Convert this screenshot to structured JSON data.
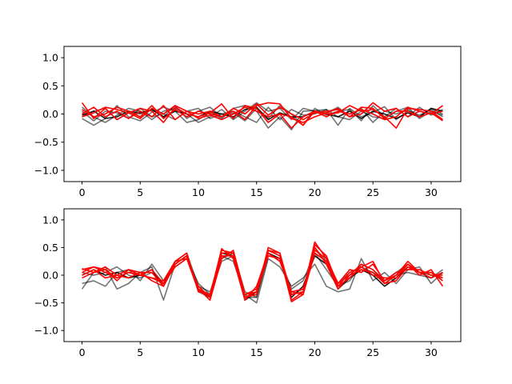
{
  "colors": {
    "background": "#ffffff",
    "frame": "#000000",
    "gray_series": "#333333",
    "red_series": "#ff0000"
  },
  "chart_data": [
    {
      "type": "line",
      "xlim": [
        -1.55,
        32.55
      ],
      "ylim": [
        -1.2,
        1.2
      ],
      "xticks": [
        0,
        5,
        10,
        15,
        20,
        25,
        30
      ],
      "yticks": [
        -1.0,
        -0.5,
        0.0,
        0.5,
        1.0
      ],
      "xtick_labels": [
        "0",
        "5",
        "10",
        "15",
        "20",
        "25",
        "30"
      ],
      "ytick_labels": [
        "−1.0",
        "−0.5",
        "0.0",
        "0.5",
        "1.0"
      ],
      "x": [
        0,
        1,
        2,
        3,
        4,
        5,
        6,
        7,
        8,
        9,
        10,
        11,
        12,
        13,
        14,
        15,
        16,
        17,
        18,
        19,
        20,
        21,
        22,
        23,
        24,
        25,
        26,
        27,
        28,
        29,
        30,
        31
      ],
      "series": [
        {
          "color": "#000000",
          "opacity": 0.55,
          "values": [
            -0.08,
            -0.2,
            -0.08,
            0.15,
            -0.05,
            -0.12,
            0.03,
            0.12,
            0.05,
            -0.15,
            -0.1,
            0.03,
            -0.08,
            0.1,
            0.15,
            0.05,
            -0.25,
            -0.05,
            -0.28,
            0.05,
            0.06,
            0.08,
            -0.2,
            0.1,
            -0.05,
            0.03,
            0.13,
            -0.1,
            0.05,
            -0.02,
            0.08,
            -0.05
          ]
        },
        {
          "color": "#000000",
          "opacity": 0.55,
          "values": [
            0.12,
            -0.05,
            -0.15,
            -0.02,
            0.1,
            0.05,
            -0.1,
            0.05,
            0.1,
            0.0,
            -0.15,
            -0.05,
            0.08,
            -0.1,
            0.05,
            0.2,
            0.05,
            0.1,
            -0.1,
            0.1,
            0.05,
            0.02,
            0.12,
            -0.05,
            0.1,
            -0.15,
            0.05,
            0.0,
            0.08,
            -0.05,
            0.1,
            0.0
          ]
        },
        {
          "color": "#000000",
          "opacity": 0.55,
          "values": [
            -0.05,
            0.05,
            0.1,
            -0.1,
            0.02,
            0.0,
            0.08,
            -0.05,
            0.15,
            -0.08,
            0.05,
            0.12,
            -0.05,
            0.02,
            -0.12,
            0.1,
            -0.08,
            0.15,
            0.0,
            -0.2,
            0.1,
            -0.02,
            0.05,
            0.08,
            -0.12,
            0.15,
            -0.05,
            0.1,
            -0.05,
            0.12,
            -0.02,
            0.08
          ]
        },
        {
          "color": "#000000",
          "opacity": 0.55,
          "values": [
            0.05,
            -0.12,
            0.05,
            0.02,
            -0.08,
            0.1,
            -0.05,
            0.0,
            -0.1,
            0.05,
            0.1,
            -0.08,
            0.0,
            0.05,
            -0.05,
            -0.15,
            0.12,
            -0.1,
            0.08,
            -0.02,
            0.0,
            0.08,
            -0.05,
            -0.1,
            0.05,
            -0.05,
            -0.08,
            0.05,
            0.12,
            -0.08,
            0.05,
            -0.02
          ]
        },
        {
          "color": "#000000",
          "opacity": 0.9,
          "values": [
            -0.02,
            0.05,
            -0.08,
            -0.05,
            0.05,
            0.02,
            0.08,
            -0.05,
            0.05,
            0.0,
            -0.05,
            0.05,
            0.0,
            -0.05,
            0.08,
            0.12,
            -0.1,
            0.02,
            -0.05,
            -0.05,
            0.05,
            0.0,
            -0.05,
            0.05,
            -0.08,
            0.05,
            0.0,
            -0.08,
            0.02,
            -0.05,
            0.1,
            0.05
          ]
        },
        {
          "color": "#ff0000",
          "opacity": 1,
          "values": [
            0.2,
            -0.08,
            0.1,
            -0.1,
            0.02,
            0.1,
            0.05,
            -0.15,
            0.12,
            0.0,
            -0.05,
            0.02,
            0.18,
            -0.08,
            0.15,
            0.1,
            -0.15,
            0.0,
            -0.05,
            -0.2,
            0.05,
            -0.05,
            0.05,
            0.0,
            0.08,
            0.0,
            -0.1,
            -0.05,
            0.12,
            0.05,
            0.0,
            0.15
          ]
        },
        {
          "color": "#ff0000",
          "opacity": 1,
          "values": [
            0.0,
            0.12,
            -0.05,
            0.05,
            -0.08,
            0.05,
            -0.05,
            0.15,
            -0.1,
            0.05,
            0.0,
            0.05,
            -0.05,
            0.05,
            -0.1,
            0.15,
            0.2,
            0.18,
            -0.08,
            -0.15,
            -0.05,
            0.02,
            0.1,
            -0.05,
            0.12,
            0.1,
            -0.08,
            0.05,
            0.05,
            -0.05,
            0.02,
            -0.12
          ]
        },
        {
          "color": "#ff0000",
          "opacity": 1,
          "values": [
            -0.05,
            0.02,
            0.12,
            0.08,
            0.02,
            -0.08,
            0.1,
            0.0,
            0.15,
            0.05,
            -0.08,
            -0.02,
            -0.1,
            0.0,
            0.12,
            0.05,
            -0.05,
            0.0,
            -0.25,
            -0.05,
            0.05,
            0.0,
            0.02,
            0.15,
            0.05,
            0.08,
            -0.05,
            -0.25,
            0.1,
            0.08,
            0.05,
            -0.1
          ]
        },
        {
          "color": "#ff0000",
          "opacity": 1,
          "values": [
            0.08,
            -0.05,
            0.0,
            0.12,
            0.05,
            -0.05,
            0.15,
            -0.08,
            0.08,
            -0.05,
            0.05,
            0.0,
            -0.05,
            0.1,
            0.0,
            0.18,
            -0.02,
            0.12,
            0.0,
            -0.1,
            0.02,
            0.05,
            0.08,
            -0.05,
            0.0,
            0.2,
            0.05,
            0.1,
            -0.05,
            0.05,
            0.0,
            0.05
          ]
        }
      ]
    },
    {
      "type": "line",
      "xlim": [
        -1.55,
        32.55
      ],
      "ylim": [
        -1.2,
        1.2
      ],
      "xticks": [
        0,
        5,
        10,
        15,
        20,
        25,
        30
      ],
      "yticks": [
        -1.0,
        -0.5,
        0.0,
        0.5,
        1.0
      ],
      "xtick_labels": [
        "0",
        "5",
        "10",
        "15",
        "20",
        "25",
        "30"
      ],
      "ytick_labels": [
        "−1.0",
        "−0.5",
        "0.0",
        "0.5",
        "1.0"
      ],
      "x": [
        0,
        1,
        2,
        3,
        4,
        5,
        6,
        7,
        8,
        9,
        10,
        11,
        12,
        13,
        14,
        15,
        16,
        17,
        18,
        19,
        20,
        21,
        22,
        23,
        24,
        25,
        26,
        27,
        28,
        29,
        30,
        31
      ],
      "series": [
        {
          "color": "#000000",
          "opacity": 0.55,
          "values": [
            -0.25,
            0.05,
            0.15,
            -0.25,
            -0.15,
            0.05,
            0.15,
            -0.45,
            0.2,
            0.35,
            -0.3,
            -0.4,
            0.35,
            0.25,
            -0.35,
            -0.5,
            0.3,
            0.15,
            -0.2,
            -0.05,
            0.2,
            -0.2,
            -0.3,
            -0.25,
            0.3,
            -0.1,
            0.05,
            -0.15,
            0.1,
            0.15,
            -0.15,
            0.05
          ]
        },
        {
          "color": "#000000",
          "opacity": 0.55,
          "values": [
            -0.15,
            -0.1,
            -0.2,
            0.05,
            0.1,
            -0.1,
            0.2,
            -0.1,
            0.15,
            0.3,
            -0.15,
            -0.35,
            0.25,
            0.35,
            -0.4,
            -0.4,
            0.35,
            0.3,
            -0.25,
            -0.1,
            0.4,
            0.1,
            -0.2,
            -0.1,
            0.2,
            0.1,
            -0.15,
            0.0,
            0.05,
            0.0,
            -0.05,
            0.1
          ]
        },
        {
          "color": "#000000",
          "opacity": 0.55,
          "values": [
            0.05,
            0.0,
            0.05,
            0.15,
            0.0,
            -0.05,
            0.05,
            -0.15,
            0.25,
            0.4,
            -0.2,
            -0.3,
            0.3,
            0.4,
            -0.3,
            -0.4,
            0.45,
            0.35,
            -0.35,
            -0.25,
            0.5,
            0.25,
            -0.15,
            0.05,
            0.15,
            0.05,
            -0.1,
            0.05,
            0.2,
            0.05,
            0.0,
            -0.05
          ]
        },
        {
          "color": "#000000",
          "opacity": 0.9,
          "values": [
            0.0,
            0.1,
            0.0,
            0.05,
            -0.05,
            0.0,
            0.1,
            -0.2,
            0.2,
            0.35,
            -0.25,
            -0.4,
            0.4,
            0.35,
            -0.45,
            -0.3,
            0.4,
            0.3,
            -0.4,
            -0.2,
            0.35,
            0.2,
            -0.25,
            -0.05,
            0.1,
            0.0,
            -0.2,
            -0.05,
            0.15,
            0.05,
            -0.05,
            0.05
          ]
        },
        {
          "color": "#ff0000",
          "opacity": 1,
          "values": [
            0.1,
            0.15,
            0.05,
            -0.05,
            0.05,
            0.0,
            -0.05,
            -0.1,
            0.25,
            0.4,
            -0.3,
            -0.35,
            0.45,
            0.4,
            -0.4,
            -0.35,
            0.5,
            0.4,
            -0.45,
            -0.3,
            0.6,
            0.3,
            -0.15,
            0.0,
            0.2,
            0.1,
            -0.1,
            0.0,
            0.25,
            0.05,
            0.05,
            -0.05
          ]
        },
        {
          "color": "#ff0000",
          "opacity": 1,
          "values": [
            0.0,
            0.1,
            -0.05,
            0.0,
            0.1,
            0.05,
            -0.1,
            -0.2,
            0.2,
            0.35,
            -0.25,
            -0.45,
            0.3,
            0.45,
            -0.35,
            -0.25,
            0.45,
            0.35,
            -0.48,
            -0.35,
            0.55,
            0.35,
            -0.2,
            0.05,
            0.15,
            0.25,
            -0.15,
            0.0,
            0.2,
            0.0,
            0.1,
            -0.2
          ]
        },
        {
          "color": "#ff0000",
          "opacity": 1,
          "values": [
            0.05,
            0.15,
            0.1,
            -0.05,
            0.05,
            0.0,
            -0.05,
            -0.15,
            0.15,
            0.3,
            -0.2,
            -0.4,
            0.35,
            0.35,
            -0.35,
            -0.3,
            0.35,
            0.3,
            -0.3,
            -0.35,
            0.4,
            0.25,
            -0.2,
            -0.05,
            0.15,
            0.0,
            -0.05,
            -0.05,
            0.2,
            0.05,
            -0.05,
            0.05
          ]
        },
        {
          "color": "#ff0000",
          "opacity": 1,
          "values": [
            0.12,
            0.05,
            0.15,
            0.0,
            -0.05,
            0.05,
            0.05,
            -0.2,
            0.25,
            0.3,
            -0.28,
            -0.38,
            0.48,
            0.3,
            -0.45,
            -0.2,
            0.4,
            0.25,
            -0.3,
            -0.25,
            0.45,
            0.3,
            -0.15,
            0.1,
            0.05,
            0.2,
            -0.1,
            0.05,
            0.1,
            0.1,
            0.0,
            0.0
          ]
        },
        {
          "color": "#ff0000",
          "opacity": 1,
          "values": [
            -0.05,
            0.05,
            0.1,
            -0.1,
            0.1,
            0.0,
            0.1,
            -0.15,
            0.2,
            0.35,
            -0.25,
            -0.35,
            0.4,
            0.4,
            -0.4,
            -0.3,
            0.45,
            0.4,
            -0.35,
            -0.3,
            0.5,
            0.2,
            -0.25,
            0.0,
            0.1,
            0.05,
            -0.15,
            -0.1,
            0.15,
            0.05,
            0.05,
            -0.1
          ]
        }
      ]
    }
  ]
}
